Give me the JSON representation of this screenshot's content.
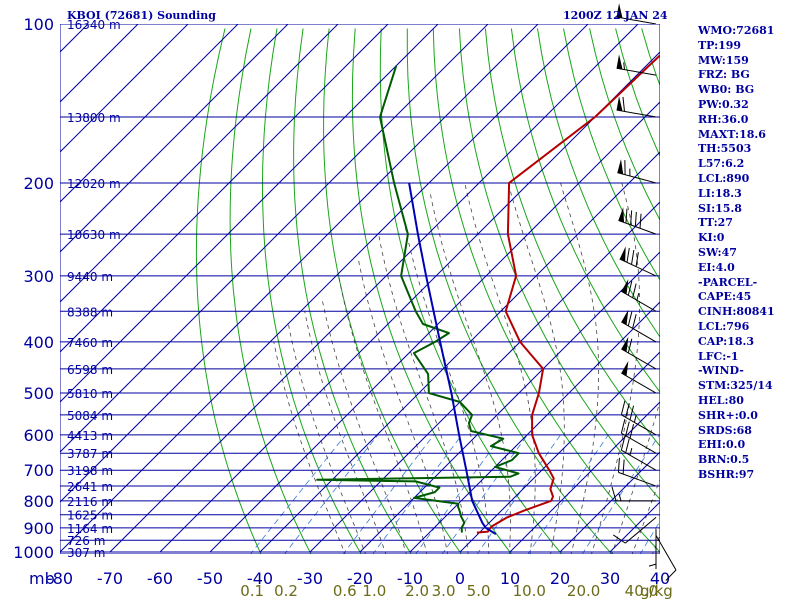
{
  "header": {
    "station": "KBOI (72681) Sounding",
    "time": "1200Z 12 JAN 24"
  },
  "stats": [
    "WMO:72681",
    "TP:199",
    "MW:159",
    "FRZ: BG",
    "WB0: BG",
    "PW:0.32",
    "RH:36.0",
    "MAXT:18.6",
    "TH:5503",
    "L57:6.2",
    "LCL:890",
    "LI:18.3",
    "SI:15.8",
    "TT:27",
    "KI:0",
    "SW:47",
    "EI:4.0",
    "-PARCEL-",
    "CAPE:45",
    "CINH:80841",
    "LCL:796",
    "CAP:18.3",
    "LFC:-1",
    "-WIND-",
    "STM:325/14",
    "HEL:80",
    "SHR+:0.0",
    "SRDS:68",
    "EHI:0.0",
    "BRN:0.5",
    "BSHR:97"
  ],
  "colors": {
    "isobar": "#0000a0",
    "isotherm": "#0000a0",
    "dry_adiabat": "#1aa51a",
    "moist_adiabat": "#444444",
    "mixing_ratio": "#3c78dc",
    "temperature": "#b40000",
    "dewpoint": "#005a00",
    "parcel": "#0000b4",
    "wind_barb": "#000000",
    "stats_text": "#0000a0",
    "mixing_ratio_label": "#6b6b18"
  },
  "chart_data": {
    "type": "line",
    "title": "KBOI (72681) Sounding",
    "subtitle": "1200Z 12 JAN 24",
    "pressure_unit_label": "mb",
    "pressure_levels_mb": [
      100,
      200,
      300,
      400,
      500,
      600,
      700,
      800,
      900,
      1000
    ],
    "pressure_tick_labels": [
      "100",
      "200",
      "300",
      "400",
      "500",
      "600",
      "700",
      "800",
      "900",
      "1000"
    ],
    "temperature_ticks_c": [
      -80,
      -70,
      -60,
      -50,
      -40,
      -30,
      -20,
      -10,
      0,
      10,
      20,
      30,
      40
    ],
    "temperature_tick_labels": [
      "-80",
      "-70",
      "-60",
      "-50",
      "-40",
      "-30",
      "-20",
      "-10",
      "0",
      "10",
      "20",
      "30",
      "40"
    ],
    "mixing_ratio_labels": [
      "0.1",
      "0.2",
      "0.6",
      "1.0",
      "2.0",
      "3.0",
      "5.0",
      "10.0",
      "20.0",
      "40.0"
    ],
    "mixing_ratio_values_gkg": [
      0.1,
      0.2,
      0.6,
      1.0,
      2.0,
      3.0,
      5.0,
      10.0,
      20.0,
      40.0
    ],
    "mixing_ratio_unit": "g/kg",
    "height_labels": [
      {
        "p": 100,
        "text": "16340 m"
      },
      {
        "p": 150,
        "text": "13800 m"
      },
      {
        "p": 200,
        "text": "12020 m"
      },
      {
        "p": 250,
        "text": "10630 m"
      },
      {
        "p": 300,
        "text": "9440 m"
      },
      {
        "p": 350,
        "text": "8388 m"
      },
      {
        "p": 400,
        "text": "7460 m"
      },
      {
        "p": 450,
        "text": "6598 m"
      },
      {
        "p": 500,
        "text": "5810 m"
      },
      {
        "p": 550,
        "text": "5084 m"
      },
      {
        "p": 600,
        "text": "4413 m"
      },
      {
        "p": 650,
        "text": "3787 m"
      },
      {
        "p": 700,
        "text": "3198 m"
      },
      {
        "p": 750,
        "text": "2641 m"
      },
      {
        "p": 800,
        "text": "2116 m"
      },
      {
        "p": 850,
        "text": "1625 m"
      },
      {
        "p": 900,
        "text": "1164 m"
      },
      {
        "p": 950,
        "text": "726 m"
      },
      {
        "p": 1000,
        "text": "307 m"
      }
    ],
    "series": [
      {
        "name": "temperature",
        "color": "#b40000",
        "points": [
          [
            919,
            -0.5
          ],
          [
            915,
            1.5
          ],
          [
            895,
            1.2
          ],
          [
            860,
            2.5
          ],
          [
            835,
            4.5
          ],
          [
            800,
            8.0
          ],
          [
            785,
            7.5
          ],
          [
            760,
            5.5
          ],
          [
            725,
            4.0
          ],
          [
            700,
            1.5
          ],
          [
            650,
            -4.0
          ],
          [
            600,
            -9.0
          ],
          [
            550,
            -13.0
          ],
          [
            500,
            -16.0
          ],
          [
            450,
            -20.0
          ],
          [
            400,
            -30.0
          ],
          [
            350,
            -39.0
          ],
          [
            300,
            -44.0
          ],
          [
            250,
            -54.0
          ],
          [
            200,
            -64.0
          ],
          [
            150,
            -60.0
          ],
          [
            100,
            -59.0
          ]
        ]
      },
      {
        "name": "dewpoint",
        "color": "#005a00",
        "points": [
          [
            919,
            -3.5
          ],
          [
            900,
            -4.5
          ],
          [
            880,
            -5.0
          ],
          [
            855,
            -7.0
          ],
          [
            840,
            -8.0
          ],
          [
            820,
            -9.5
          ],
          [
            810,
            -10.0
          ],
          [
            790,
            -20.0
          ],
          [
            770,
            -17.0
          ],
          [
            755,
            -17.0
          ],
          [
            735,
            -23.0
          ],
          [
            730,
            -43.0
          ],
          [
            720,
            -5.0
          ],
          [
            710,
            -4.0
          ],
          [
            690,
            -10.0
          ],
          [
            670,
            -8.0
          ],
          [
            650,
            -8.0
          ],
          [
            630,
            -15.0
          ],
          [
            610,
            -14.0
          ],
          [
            590,
            -22.0
          ],
          [
            570,
            -24.0
          ],
          [
            550,
            -25.0
          ],
          [
            520,
            -30.0
          ],
          [
            500,
            -38.0
          ],
          [
            460,
            -42.0
          ],
          [
            420,
            -49.0
          ],
          [
            400,
            -47.0
          ],
          [
            385,
            -46.0
          ],
          [
            370,
            -53.0
          ],
          [
            350,
            -57.0
          ],
          [
            300,
            -67.0
          ],
          [
            250,
            -74.0
          ],
          [
            200,
            -87.0
          ],
          [
            150,
            -103.0
          ],
          [
            120,
            -110.0
          ]
        ]
      },
      {
        "name": "parcel",
        "color": "#0000b4",
        "points": [
          [
            925,
            3.6
          ],
          [
            900,
            0.3
          ],
          [
            880,
            -1.4
          ],
          [
            800,
            -7.8
          ],
          [
            700,
            -15.1
          ],
          [
            600,
            -23.6
          ],
          [
            500,
            -33.5
          ],
          [
            400,
            -46.0
          ],
          [
            300,
            -62.0
          ],
          [
            250,
            -72.0
          ],
          [
            200,
            -84.0
          ]
        ]
      }
    ],
    "wind_barbs": [
      {
        "p": 930,
        "dir": 150,
        "spd": 10
      },
      {
        "p": 905,
        "dir": 180,
        "spd": 5
      },
      {
        "p": 860,
        "dir": 230,
        "spd": 10
      },
      {
        "p": 800,
        "dir": 270,
        "spd": 15
      },
      {
        "p": 750,
        "dir": 290,
        "spd": 20
      },
      {
        "p": 700,
        "dir": 300,
        "spd": 25
      },
      {
        "p": 650,
        "dir": 300,
        "spd": 30
      },
      {
        "p": 600,
        "dir": 300,
        "spd": 35
      },
      {
        "p": 500,
        "dir": 300,
        "spd": 50
      },
      {
        "p": 450,
        "dir": 300,
        "spd": 60
      },
      {
        "p": 400,
        "dir": 300,
        "spd": 70
      },
      {
        "p": 350,
        "dir": 300,
        "spd": 75
      },
      {
        "p": 300,
        "dir": 295,
        "spd": 80
      },
      {
        "p": 250,
        "dir": 290,
        "spd": 90
      },
      {
        "p": 200,
        "dir": 285,
        "spd": 65
      },
      {
        "p": 150,
        "dir": 280,
        "spd": 60
      },
      {
        "p": 125,
        "dir": 280,
        "spd": 55
      },
      {
        "p": 100,
        "dir": 280,
        "spd": 50
      }
    ]
  }
}
